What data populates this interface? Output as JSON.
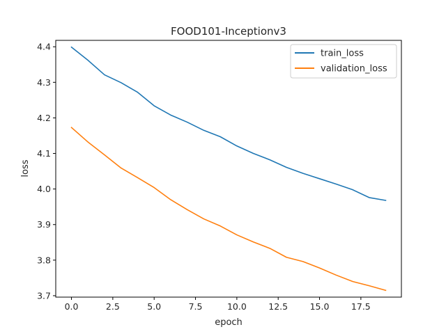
{
  "chart_data": {
    "type": "line",
    "title": "FOOD101-Inceptionv3",
    "xlabel": "epoch",
    "ylabel": "loss",
    "xlim": [
      -0.95,
      19.95
    ],
    "ylim": [
      3.696,
      4.418
    ],
    "xticks": [
      0,
      2.5,
      5,
      7.5,
      10,
      12.5,
      15,
      17.5
    ],
    "xtick_labels": [
      "0.0",
      "2.5",
      "5.0",
      "7.5",
      "10.0",
      "12.5",
      "15.0",
      "17.5"
    ],
    "yticks": [
      3.7,
      3.8,
      3.9,
      4.0,
      4.1,
      4.2,
      4.3,
      4.4
    ],
    "ytick_labels": [
      "3.7",
      "3.8",
      "3.9",
      "4.0",
      "4.1",
      "4.2",
      "4.3",
      "4.4"
    ],
    "grid": false,
    "legend_position": "top-right",
    "x": [
      0,
      1,
      2,
      3,
      4,
      5,
      6,
      7,
      8,
      9,
      10,
      11,
      12,
      13,
      14,
      15,
      16,
      17,
      18,
      19
    ],
    "series": [
      {
        "name": "train_loss",
        "color": "#1f77b4",
        "values": [
          4.399,
          4.362,
          4.321,
          4.299,
          4.272,
          4.234,
          4.208,
          4.188,
          4.165,
          4.147,
          4.121,
          4.1,
          4.082,
          4.061,
          4.044,
          4.029,
          4.014,
          3.998,
          3.976,
          3.968
        ]
      },
      {
        "name": "validation_loss",
        "color": "#ff7f0e",
        "values": [
          4.173,
          4.132,
          4.096,
          4.059,
          4.032,
          4.004,
          3.97,
          3.942,
          3.916,
          3.896,
          3.871,
          3.851,
          3.833,
          3.808,
          3.796,
          3.778,
          3.758,
          3.74,
          3.728,
          3.715
        ]
      }
    ]
  }
}
